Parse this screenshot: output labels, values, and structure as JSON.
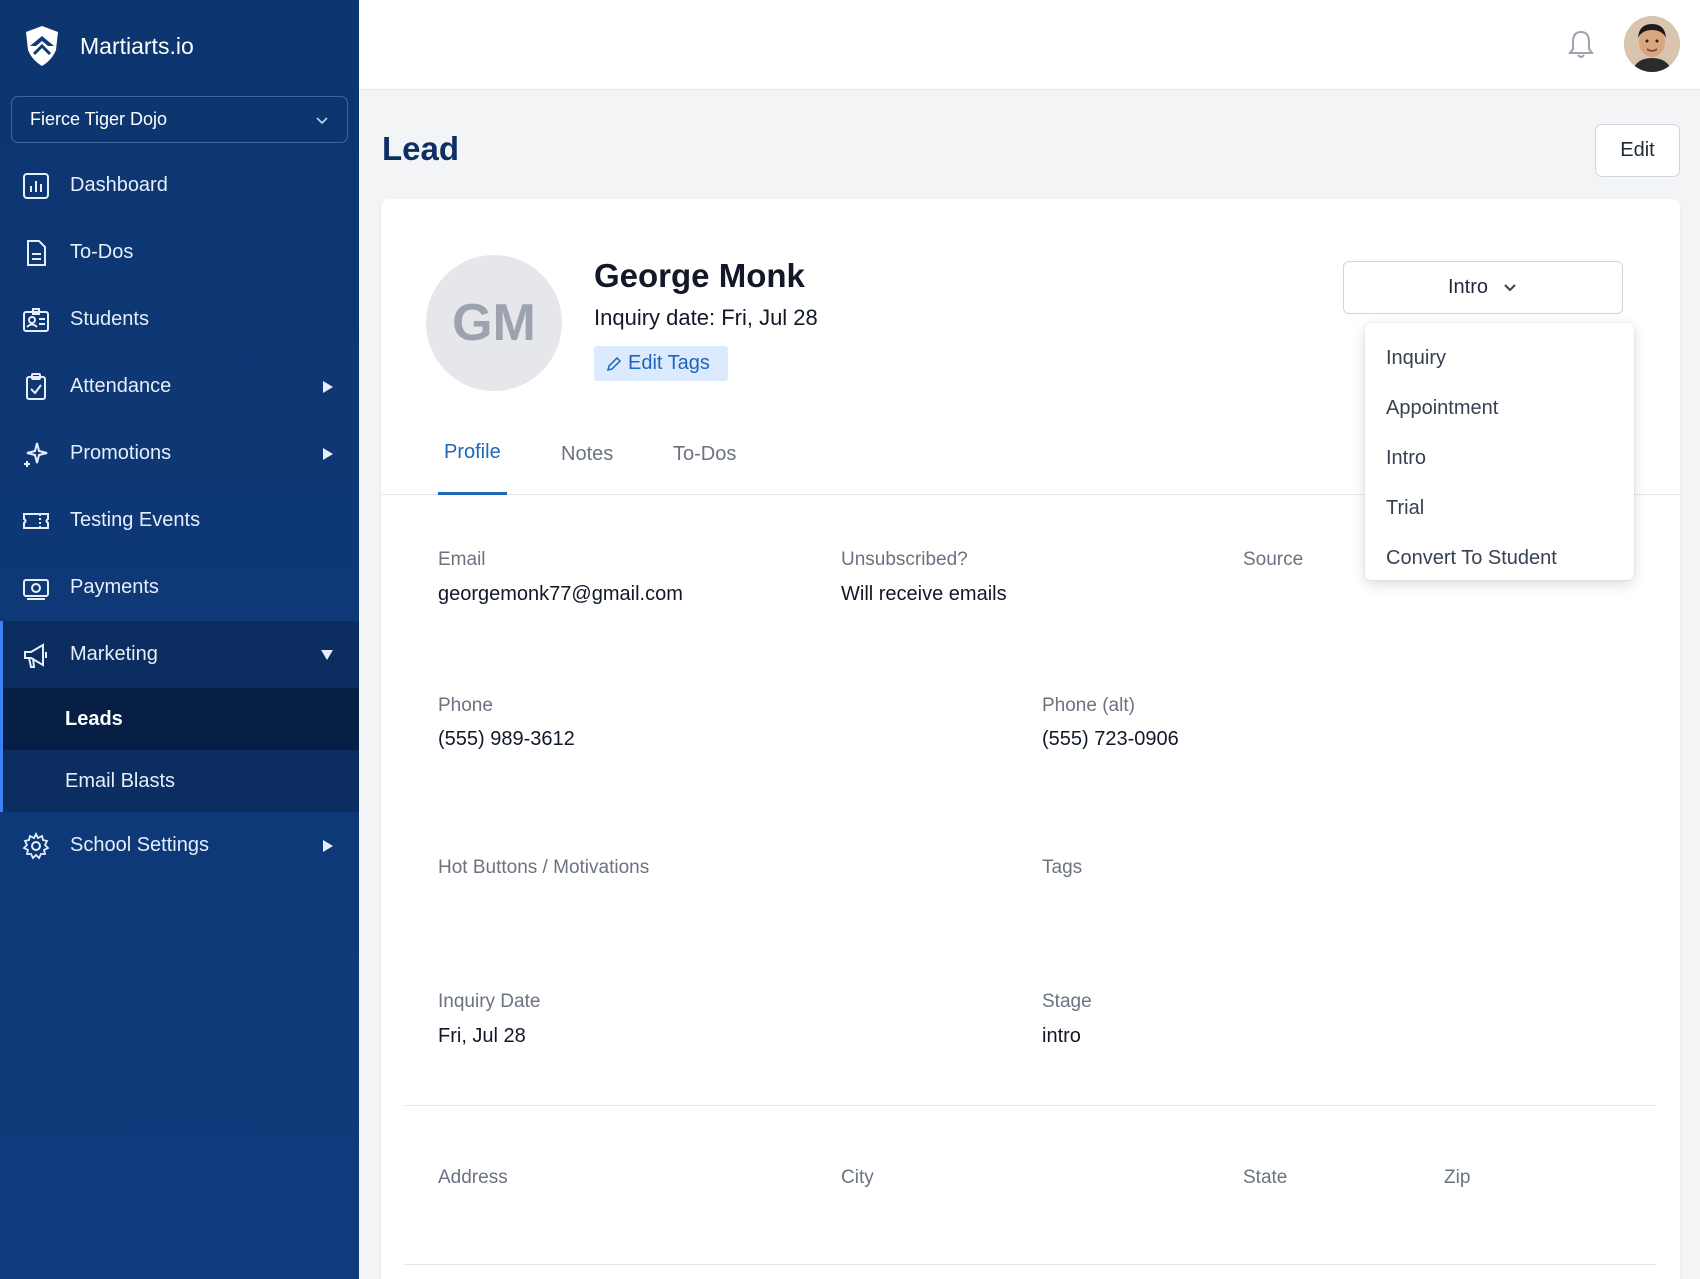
{
  "app": {
    "name": "Martiarts.io",
    "school": "Fierce Tiger Dojo"
  },
  "sidebar": {
    "items": [
      {
        "label": "Dashboard",
        "icon": "chart-icon"
      },
      {
        "label": "To-Dos",
        "icon": "document-icon"
      },
      {
        "label": "Students",
        "icon": "id-card-icon"
      },
      {
        "label": "Attendance",
        "icon": "clipboard-check-icon"
      },
      {
        "label": "Promotions",
        "icon": "sparkles-icon"
      },
      {
        "label": "Testing Events",
        "icon": "ticket-icon"
      },
      {
        "label": "Payments",
        "icon": "cash-icon"
      },
      {
        "label": "Marketing",
        "icon": "megaphone-icon"
      },
      {
        "label": "School Settings",
        "icon": "gear-icon"
      }
    ],
    "marketing_sub": [
      {
        "label": "Leads"
      },
      {
        "label": "Email Blasts"
      }
    ]
  },
  "header": {
    "title": "Lead",
    "edit_label": "Edit"
  },
  "lead": {
    "initials": "GM",
    "name": "George Monk",
    "inquiry_line": "Inquiry date: Fri, Jul 28",
    "edit_tags_label": "Edit Tags"
  },
  "stage_select": {
    "selected": "Intro",
    "options": [
      "Inquiry",
      "Appointment",
      "Intro",
      "Trial",
      "Convert To Student"
    ]
  },
  "tabs": [
    "Profile",
    "Notes",
    "To-Dos"
  ],
  "profile": {
    "email_label": "Email",
    "email": "georgemonk77@gmail.com",
    "unsub_label": "Unsubscribed?",
    "unsub_value": "Will receive emails",
    "source_label": "Source",
    "phone_label": "Phone",
    "phone": "(555) 989-3612",
    "phone_alt_label": "Phone (alt)",
    "phone_alt": "(555) 723-0906",
    "hot_buttons_label": "Hot Buttons / Motivations",
    "tags_label": "Tags",
    "inquiry_date_label": "Inquiry Date",
    "inquiry_date": "Fri, Jul 28",
    "stage_label": "Stage",
    "stage": "intro",
    "address_label": "Address",
    "city_label": "City",
    "state_label": "State",
    "zip_label": "Zip"
  },
  "colors": {
    "sidebar": "#0f3a78",
    "accent": "#1e66b8",
    "title": "#0d2f63"
  }
}
